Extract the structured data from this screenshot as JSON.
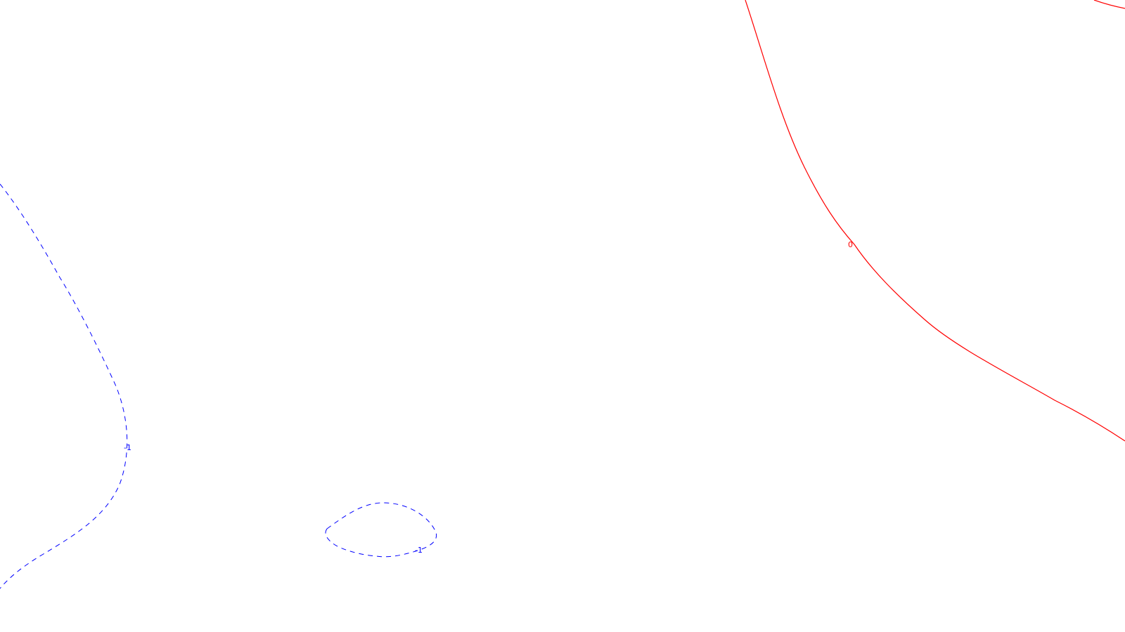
{
  "colors": {
    "background": "#ffffff",
    "positive": "#ff0000",
    "negative": "#0000ff"
  },
  "contours": [
    {
      "id": "neg-west",
      "level": -1,
      "style": "dashed",
      "color": "#0000ff",
      "label": "-1"
    },
    {
      "id": "neg-south-loop",
      "level": -1,
      "style": "dashed",
      "color": "#0000ff",
      "label": "-1"
    },
    {
      "id": "zero-east",
      "level": 0,
      "style": "solid",
      "color": "#ff0000",
      "label": "0"
    },
    {
      "id": "zero-northeast",
      "level": 0,
      "style": "solid",
      "color": "#ff0000",
      "label": ""
    }
  ]
}
